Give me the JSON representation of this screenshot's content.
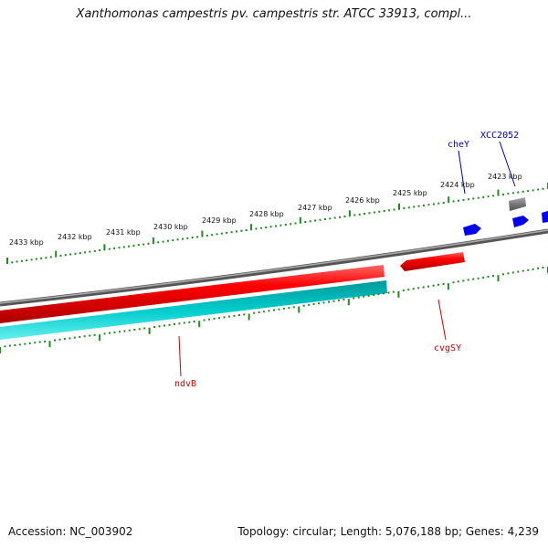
{
  "title": "Xanthomonas campestris pv. campestris str. ATCC 33913, compl...",
  "footer": {
    "accession": "Accession: NC_003902",
    "summary": "Topology: circular; Length: 5,076,188 bp; Genes: 4,239"
  },
  "ruler": {
    "labels": [
      "2433 kbp",
      "2432 kbp",
      "2431 kbp",
      "2430 kbp",
      "2429 kbp",
      "2428 kbp",
      "2427 kbp",
      "2426 kbp",
      "2425 kbp",
      "2424 kbp",
      "2423 kbp"
    ],
    "tick_color": "#228822"
  },
  "genes": [
    {
      "name": "ndvB",
      "color": "#cc0000"
    },
    {
      "name": "cvgSY",
      "color": "#cc0000"
    },
    {
      "name": "cheY",
      "color": "#0000aa"
    },
    {
      "name": "XCC2052",
      "color": "#0000aa"
    }
  ],
  "colors": {
    "backbone": "#808080",
    "red_feature": "#ee0000",
    "cyan_feature": "#00bbbb",
    "blue_feature": "#0000ee",
    "gray_feature": "#666666"
  }
}
